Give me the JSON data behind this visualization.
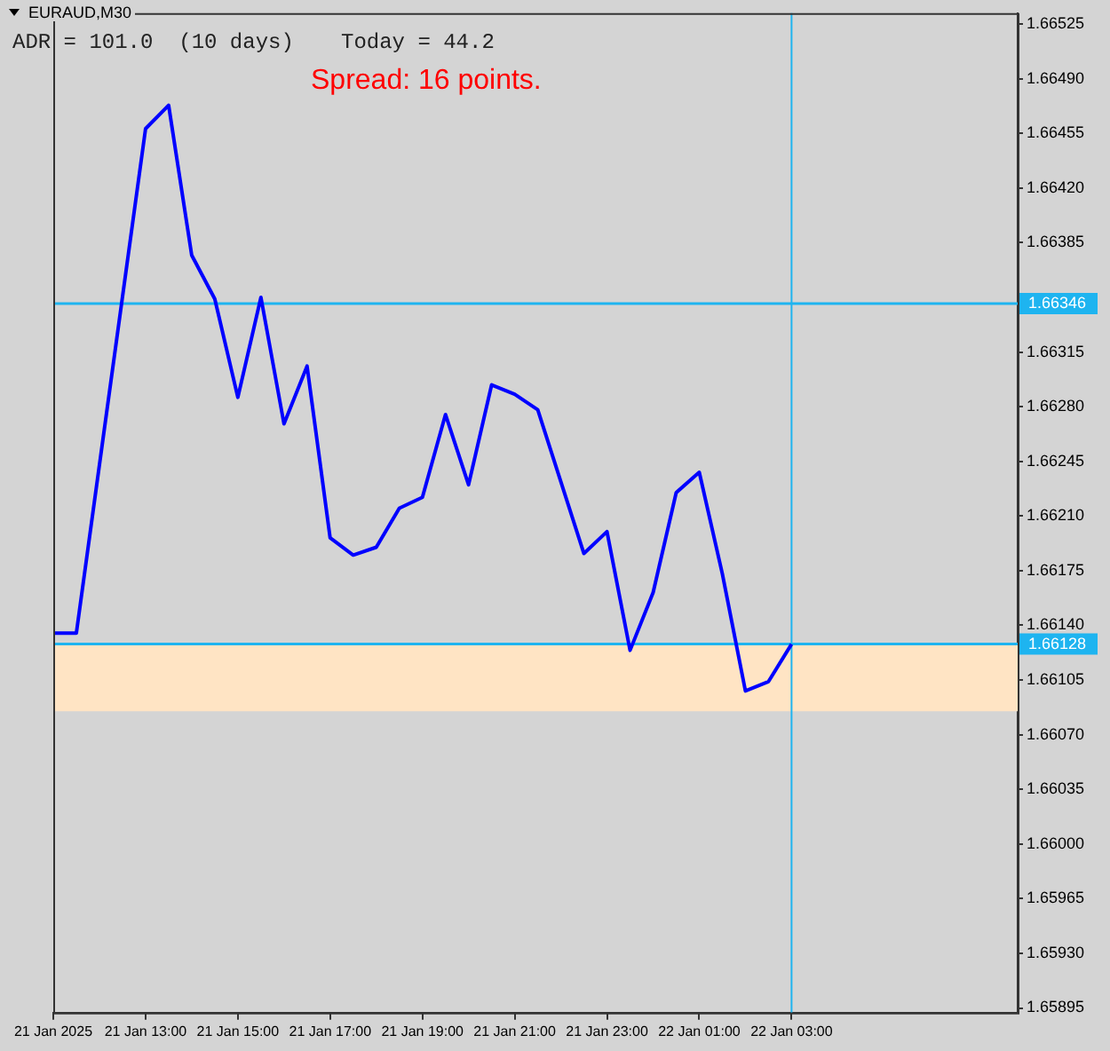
{
  "chart_data": {
    "type": "line",
    "title": "EURAUD,M30",
    "annotations": [
      "ADR = 101.0  (10 days)",
      "Today = 44.2",
      "Spread: 16 points."
    ],
    "x": [
      "2025-01-21T11:00",
      "2025-01-21T11:30",
      "2025-01-21T13:00",
      "2025-01-21T13:30",
      "2025-01-21T14:00",
      "2025-01-21T14:30",
      "2025-01-21T15:00",
      "2025-01-21T15:30",
      "2025-01-21T16:00",
      "2025-01-21T16:30",
      "2025-01-21T17:00",
      "2025-01-21T17:30",
      "2025-01-21T18:00",
      "2025-01-21T18:30",
      "2025-01-21T19:00",
      "2025-01-21T19:30",
      "2025-01-21T20:00",
      "2025-01-21T20:30",
      "2025-01-21T21:00",
      "2025-01-21T21:30",
      "2025-01-21T22:30",
      "2025-01-21T23:00",
      "2025-01-21T23:30",
      "2025-01-22T00:00",
      "2025-01-22T00:30",
      "2025-01-22T01:00",
      "2025-01-22T01:30",
      "2025-01-22T02:00",
      "2025-01-22T02:30",
      "2025-01-22T03:00"
    ],
    "series": [
      {
        "color": "#0000ff",
        "values": [
          1.66135,
          1.66135,
          1.66458,
          1.66473,
          1.66377,
          1.66349,
          1.66286,
          1.6635,
          1.66269,
          1.66306,
          1.66196,
          1.66185,
          1.6619,
          1.66215,
          1.66222,
          1.66275,
          1.6623,
          1.66294,
          1.66288,
          1.66278,
          1.66186,
          1.662,
          1.66124,
          1.66161,
          1.66225,
          1.66238,
          1.66173,
          1.66098,
          1.66104,
          1.66128
        ]
      }
    ],
    "xlim": [
      "2025-01-21T11:00",
      "2025-01-22T07:54"
    ],
    "xticks": [
      {
        "value": "2025-01-21T11:00",
        "label": "21 Jan 2025"
      },
      {
        "value": "2025-01-21T13:00",
        "label": "21 Jan 13:00"
      },
      {
        "value": "2025-01-21T15:00",
        "label": "21 Jan 15:00"
      },
      {
        "value": "2025-01-21T17:00",
        "label": "21 Jan 17:00"
      },
      {
        "value": "2025-01-21T19:00",
        "label": "21 Jan 19:00"
      },
      {
        "value": "2025-01-21T21:00",
        "label": "21 Jan 21:00"
      },
      {
        "value": "2025-01-21T23:00",
        "label": "21 Jan 23:00"
      },
      {
        "value": "2025-01-22T01:00",
        "label": "22 Jan 01:00"
      },
      {
        "value": "2025-01-22T03:00",
        "label": "22 Jan 03:00"
      }
    ],
    "ylim": [
      1.65892,
      1.66532
    ],
    "yticks": [
      1.65895,
      {
        "value": 1.6593,
        "label": "1.65930"
      },
      1.65965,
      {
        "value": 1.66,
        "label": "1.66000"
      },
      1.66035,
      {
        "value": 1.6607,
        "label": "1.66070"
      },
      1.66105,
      {
        "value": 1.6614,
        "label": "1.66140"
      },
      1.66175,
      {
        "value": 1.6621,
        "label": "1.66210"
      },
      1.66245,
      {
        "value": 1.6628,
        "label": "1.66280"
      },
      1.66315,
      {
        "value": 1.6635,
        "label": null
      },
      1.66385,
      {
        "value": 1.6642,
        "label": "1.66420"
      },
      1.66455,
      {
        "value": 1.6649,
        "label": "1.66490"
      },
      1.66525
    ],
    "ref_lines": [
      {
        "axis": "y",
        "value": 1.66346,
        "label": "1.66346",
        "color": "#1eb4f0"
      },
      {
        "axis": "y",
        "value": 1.66128,
        "label": "1.66128",
        "color": "#1eb4f0"
      },
      {
        "axis": "x",
        "value": "2025-01-22T03:00",
        "color": "#1eb4f0"
      }
    ],
    "bands": [
      {
        "axis": "y",
        "from": 1.66085,
        "to": 1.66128,
        "color": "#ffe4c4"
      }
    ],
    "grid": false,
    "legend": false,
    "marker": "none",
    "line_style": "solid"
  }
}
